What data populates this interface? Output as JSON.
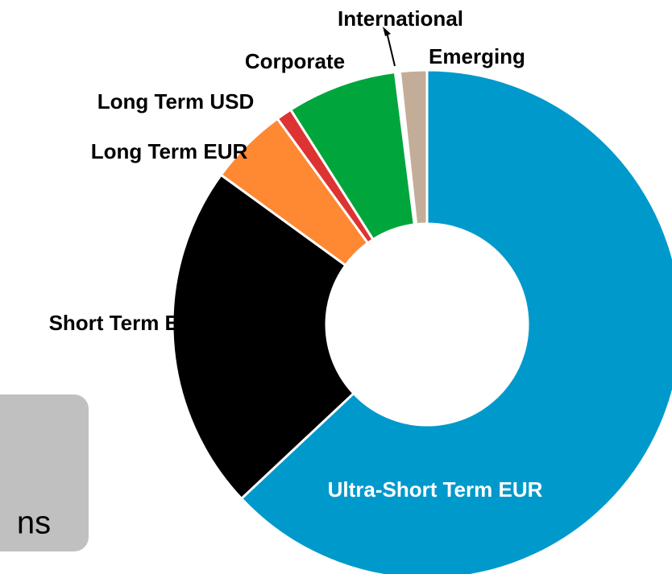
{
  "chart_data": {
    "type": "donut",
    "categories": [
      "Ultra-Short Term EUR",
      "Short Term EUR",
      "Long Term EUR",
      "Long Term USD",
      "Corporate",
      "International",
      "Emerging"
    ],
    "values": [
      63,
      22,
      5,
      1,
      7,
      0.3,
      1.7
    ],
    "colors": [
      "#0099cc",
      "#000000",
      "#ff8833",
      "#dd3333",
      "#00a63c",
      "#ffffff",
      "#c4ad98"
    ]
  },
  "note_box": {
    "text": "ns"
  }
}
